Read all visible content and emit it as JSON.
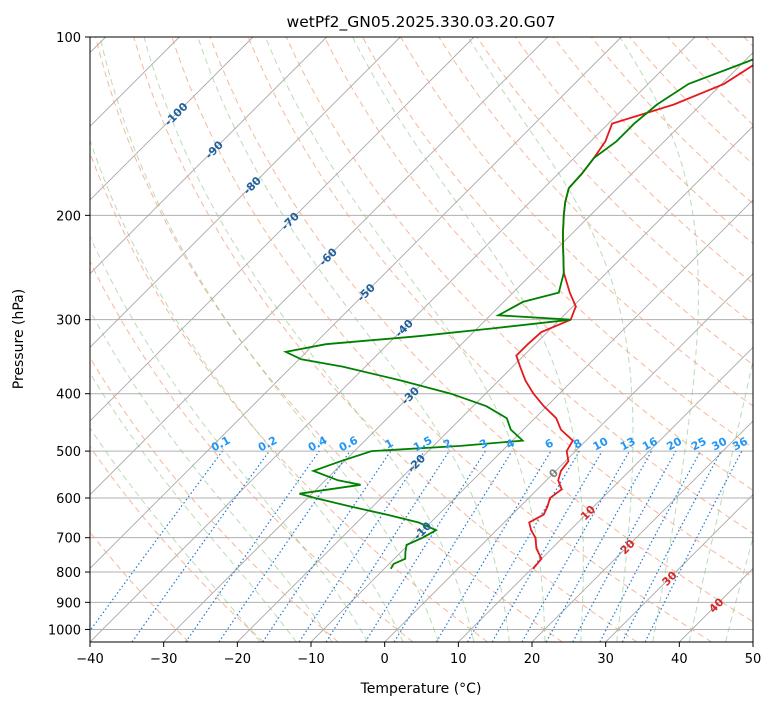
{
  "chart_data": {
    "type": "line",
    "diagram": "skew-T log-P",
    "title": "wetPf2_GN05.2025.330.03.20.G07",
    "xlabel": "Temperature (°C)",
    "ylabel": "Pressure (hPa)",
    "xlim": [
      -40,
      50
    ],
    "ylim": [
      1050,
      100
    ],
    "y_scale": "log",
    "x_ticks": [
      "−40",
      "−30",
      "−20",
      "−10",
      "0",
      "10",
      "20",
      "30",
      "40",
      "50"
    ],
    "x_tick_values": [
      -40,
      -30,
      -20,
      -10,
      0,
      10,
      20,
      30,
      40,
      50
    ],
    "y_ticks": [
      "100",
      "200",
      "300",
      "400",
      "500",
      "600",
      "700",
      "800",
      "900",
      "1000"
    ],
    "y_tick_values": [
      100,
      200,
      300,
      400,
      500,
      600,
      700,
      800,
      900,
      1000
    ],
    "grid": true,
    "isotherm_labels": [
      {
        "text": "-100",
        "value": -100
      },
      {
        "text": "-90",
        "value": -90
      },
      {
        "text": "-80",
        "value": -80
      },
      {
        "text": "-70",
        "value": -70
      },
      {
        "text": "-60",
        "value": -60
      },
      {
        "text": "-50",
        "value": -50
      },
      {
        "text": "-40",
        "value": -40
      },
      {
        "text": "-30",
        "value": -30
      },
      {
        "text": "-20",
        "value": -20
      },
      {
        "text": "-10",
        "value": -10
      },
      {
        "text": "0",
        "value": 0
      },
      {
        "text": "10",
        "value": 10
      },
      {
        "text": "20",
        "value": 20
      },
      {
        "text": "30",
        "value": 30
      },
      {
        "text": "40",
        "value": 40
      }
    ],
    "mixing_ratio_labels": [
      "0.1",
      "0.2",
      "0.4",
      "0.6",
      "1",
      "1.5",
      "2",
      "3",
      "4",
      "6",
      "8",
      "10",
      "13",
      "16",
      "20",
      "25",
      "30",
      "36"
    ],
    "mixing_ratio_values": [
      0.1,
      0.2,
      0.4,
      0.6,
      1,
      1.5,
      2,
      3,
      4,
      6,
      8,
      10,
      13,
      16,
      20,
      25,
      30,
      36
    ],
    "series": [
      {
        "variable": "temperature",
        "color": "#e41a1c",
        "points": [
          [
            100,
            -24.5
          ],
          [
            110,
            -28.0
          ],
          [
            120,
            -29.7
          ],
          [
            130,
            -33.7
          ],
          [
            140,
            -39.5
          ],
          [
            150,
            -38.0
          ],
          [
            160,
            -37.3
          ],
          [
            170,
            -36.8
          ],
          [
            180,
            -36.6
          ],
          [
            190,
            -35.2
          ],
          [
            200,
            -33.6
          ],
          [
            215,
            -31.2
          ],
          [
            230,
            -28.8
          ],
          [
            250,
            -25.8
          ],
          [
            270,
            -22.3
          ],
          [
            285,
            -19.6
          ],
          [
            300,
            -18.5
          ],
          [
            315,
            -20.8
          ],
          [
            330,
            -21.0
          ],
          [
            345,
            -21.0
          ],
          [
            360,
            -19.0
          ],
          [
            380,
            -16.4
          ],
          [
            400,
            -13.5
          ],
          [
            420,
            -10.4
          ],
          [
            440,
            -7.1
          ],
          [
            460,
            -4.9
          ],
          [
            480,
            -1.8
          ],
          [
            500,
            -1.2
          ],
          [
            520,
            0.4
          ],
          [
            540,
            0.7
          ],
          [
            560,
            1.6
          ],
          [
            580,
            3.3
          ],
          [
            600,
            2.9
          ],
          [
            620,
            3.7
          ],
          [
            640,
            4.3
          ],
          [
            660,
            3.4
          ],
          [
            680,
            4.7
          ],
          [
            700,
            6.3
          ],
          [
            730,
            7.9
          ],
          [
            760,
            10.0
          ],
          [
            790,
            10.2
          ]
        ]
      },
      {
        "variable": "dewpoint",
        "color": "#008000",
        "points": [
          [
            100,
            -24.5
          ],
          [
            110,
            -29.5
          ],
          [
            120,
            -34.5
          ],
          [
            130,
            -36.0
          ],
          [
            140,
            -36.5
          ],
          [
            150,
            -36.5
          ],
          [
            160,
            -37.3
          ],
          [
            170,
            -36.8
          ],
          [
            180,
            -36.6
          ],
          [
            190,
            -35.2
          ],
          [
            200,
            -33.6
          ],
          [
            215,
            -31.2
          ],
          [
            230,
            -28.8
          ],
          [
            250,
            -25.8
          ],
          [
            270,
            -23.8
          ],
          [
            280,
            -27.4
          ],
          [
            295,
            -28.9
          ],
          [
            300,
            -18.5
          ],
          [
            310,
            -27.6
          ],
          [
            320,
            -37.1
          ],
          [
            330,
            -48.4
          ],
          [
            340,
            -52.8
          ],
          [
            350,
            -49.7
          ],
          [
            360,
            -43.1
          ],
          [
            380,
            -33.3
          ],
          [
            400,
            -24.7
          ],
          [
            420,
            -18.2
          ],
          [
            440,
            -13.8
          ],
          [
            460,
            -11.7
          ],
          [
            480,
            -8.6
          ],
          [
            490,
            -16.3
          ],
          [
            500,
            -27.7
          ],
          [
            520,
            -30.5
          ],
          [
            540,
            -32.9
          ],
          [
            560,
            -28.3
          ],
          [
            570,
            -24.6
          ],
          [
            580,
            -28.2
          ],
          [
            590,
            -31.7
          ],
          [
            600,
            -29.0
          ],
          [
            620,
            -23.1
          ],
          [
            640,
            -17.0
          ],
          [
            660,
            -11.6
          ],
          [
            680,
            -8.2
          ],
          [
            700,
            -9.0
          ],
          [
            720,
            -10.2
          ],
          [
            740,
            -9.4
          ],
          [
            760,
            -8.5
          ],
          [
            775,
            -9.4
          ],
          [
            790,
            -9.1
          ]
        ]
      }
    ]
  }
}
